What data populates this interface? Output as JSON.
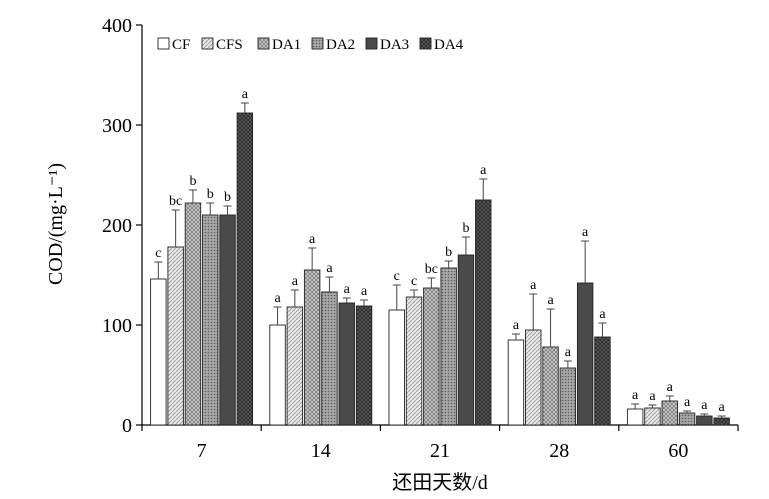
{
  "chart_data": {
    "type": "bar",
    "xlabel": "还田天数/d",
    "ylabel": "COD/(mg·L⁻¹)",
    "ylim": [
      0,
      400
    ],
    "yticks": [
      0,
      100,
      200,
      300,
      400
    ],
    "categories": [
      "7",
      "14",
      "21",
      "28",
      "60"
    ],
    "legend_position": "top-left",
    "grid": false,
    "series": [
      {
        "name": "CF",
        "pattern": "white",
        "values": [
          146,
          100,
          115,
          85,
          16
        ],
        "errors": [
          17,
          18,
          25,
          6,
          5
        ],
        "labels": [
          "c",
          "a",
          "c",
          "a",
          "a"
        ]
      },
      {
        "name": "CFS",
        "pattern": "light-hatch",
        "values": [
          178,
          118,
          128,
          95,
          17
        ],
        "errors": [
          37,
          17,
          7,
          36,
          3
        ],
        "labels": [
          "bc",
          "a",
          "c",
          "a",
          "a"
        ]
      },
      {
        "name": "DA1",
        "pattern": "grid-hatch",
        "values": [
          222,
          155,
          137,
          78,
          24
        ],
        "errors": [
          13,
          22,
          10,
          38,
          5
        ],
        "labels": [
          "b",
          "a",
          "bc",
          "a",
          "a"
        ]
      },
      {
        "name": "DA2",
        "pattern": "dot-hatch",
        "values": [
          210,
          133,
          157,
          57,
          12
        ],
        "errors": [
          12,
          15,
          7,
          7,
          2
        ],
        "labels": [
          "b",
          "a",
          "b",
          "a",
          "a"
        ]
      },
      {
        "name": "DA3",
        "pattern": "dark",
        "values": [
          210,
          122,
          170,
          142,
          9
        ],
        "errors": [
          9,
          5,
          18,
          42,
          2
        ],
        "labels": [
          "b",
          "a",
          "b",
          "a",
          "a"
        ]
      },
      {
        "name": "DA4",
        "pattern": "dark-hatch",
        "values": [
          312,
          119,
          225,
          88,
          7
        ],
        "errors": [
          10,
          6,
          21,
          14,
          2
        ],
        "labels": [
          "a",
          "a",
          "a",
          "a",
          "a"
        ]
      }
    ]
  }
}
